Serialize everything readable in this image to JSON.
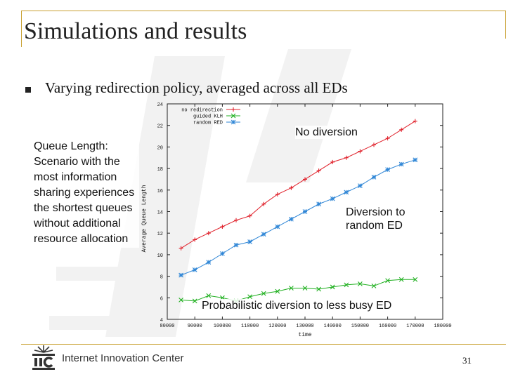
{
  "slide": {
    "title": "Simulations and results",
    "bullet": "Varying redirection policy, averaged across all EDs",
    "queue_text": "Queue Length: Scenario with the most information sharing experiences the shortest queues without additional resource allocation",
    "annotations": {
      "no_diversion": "No diversion",
      "random": "Diversion to random ED",
      "probabilistic": "Probabilistic diversion to less busy ED"
    },
    "footer": {
      "org": "Internet Innovation Center",
      "page": "31"
    }
  },
  "colors": {
    "red": "#e0202a",
    "green": "#20b020",
    "blue": "#2f86d6",
    "gold": "#c8a030"
  },
  "chart_data": {
    "type": "line",
    "title": "",
    "xlabel": "time",
    "ylabel": "Average Queue Length",
    "xlim": [
      80000,
      180000
    ],
    "ylim": [
      4,
      24
    ],
    "xticks": [
      80000,
      90000,
      100000,
      110000,
      120000,
      130000,
      140000,
      150000,
      160000,
      170000,
      180000
    ],
    "yticks": [
      4,
      6,
      8,
      10,
      12,
      14,
      16,
      18,
      20,
      22,
      24
    ],
    "x": [
      85000,
      90000,
      95000,
      100000,
      105000,
      110000,
      115000,
      120000,
      125000,
      130000,
      135000,
      140000,
      145000,
      150000,
      155000,
      160000,
      165000,
      170000
    ],
    "legend_position": "top-left",
    "series": [
      {
        "name": "no redirection",
        "color": "#e0202a",
        "marker": "+",
        "values": [
          10.6,
          11.4,
          12.0,
          12.6,
          13.2,
          13.6,
          14.7,
          15.6,
          16.2,
          17.0,
          17.8,
          18.6,
          19.0,
          19.6,
          20.2,
          20.8,
          21.6,
          22.4
        ]
      },
      {
        "name": "guided KLH",
        "color": "#20b020",
        "marker": "x",
        "values": [
          5.8,
          5.7,
          6.2,
          6.0,
          5.7,
          6.1,
          6.4,
          6.6,
          6.9,
          6.9,
          6.8,
          7.0,
          7.2,
          7.3,
          7.1,
          7.6,
          7.7,
          7.7
        ]
      },
      {
        "name": "random RED",
        "color": "#2f86d6",
        "marker": "*",
        "values": [
          8.1,
          8.6,
          9.3,
          10.1,
          10.9,
          11.2,
          11.9,
          12.6,
          13.3,
          14.0,
          14.7,
          15.2,
          15.8,
          16.4,
          17.2,
          17.9,
          18.4,
          18.8
        ]
      }
    ]
  }
}
